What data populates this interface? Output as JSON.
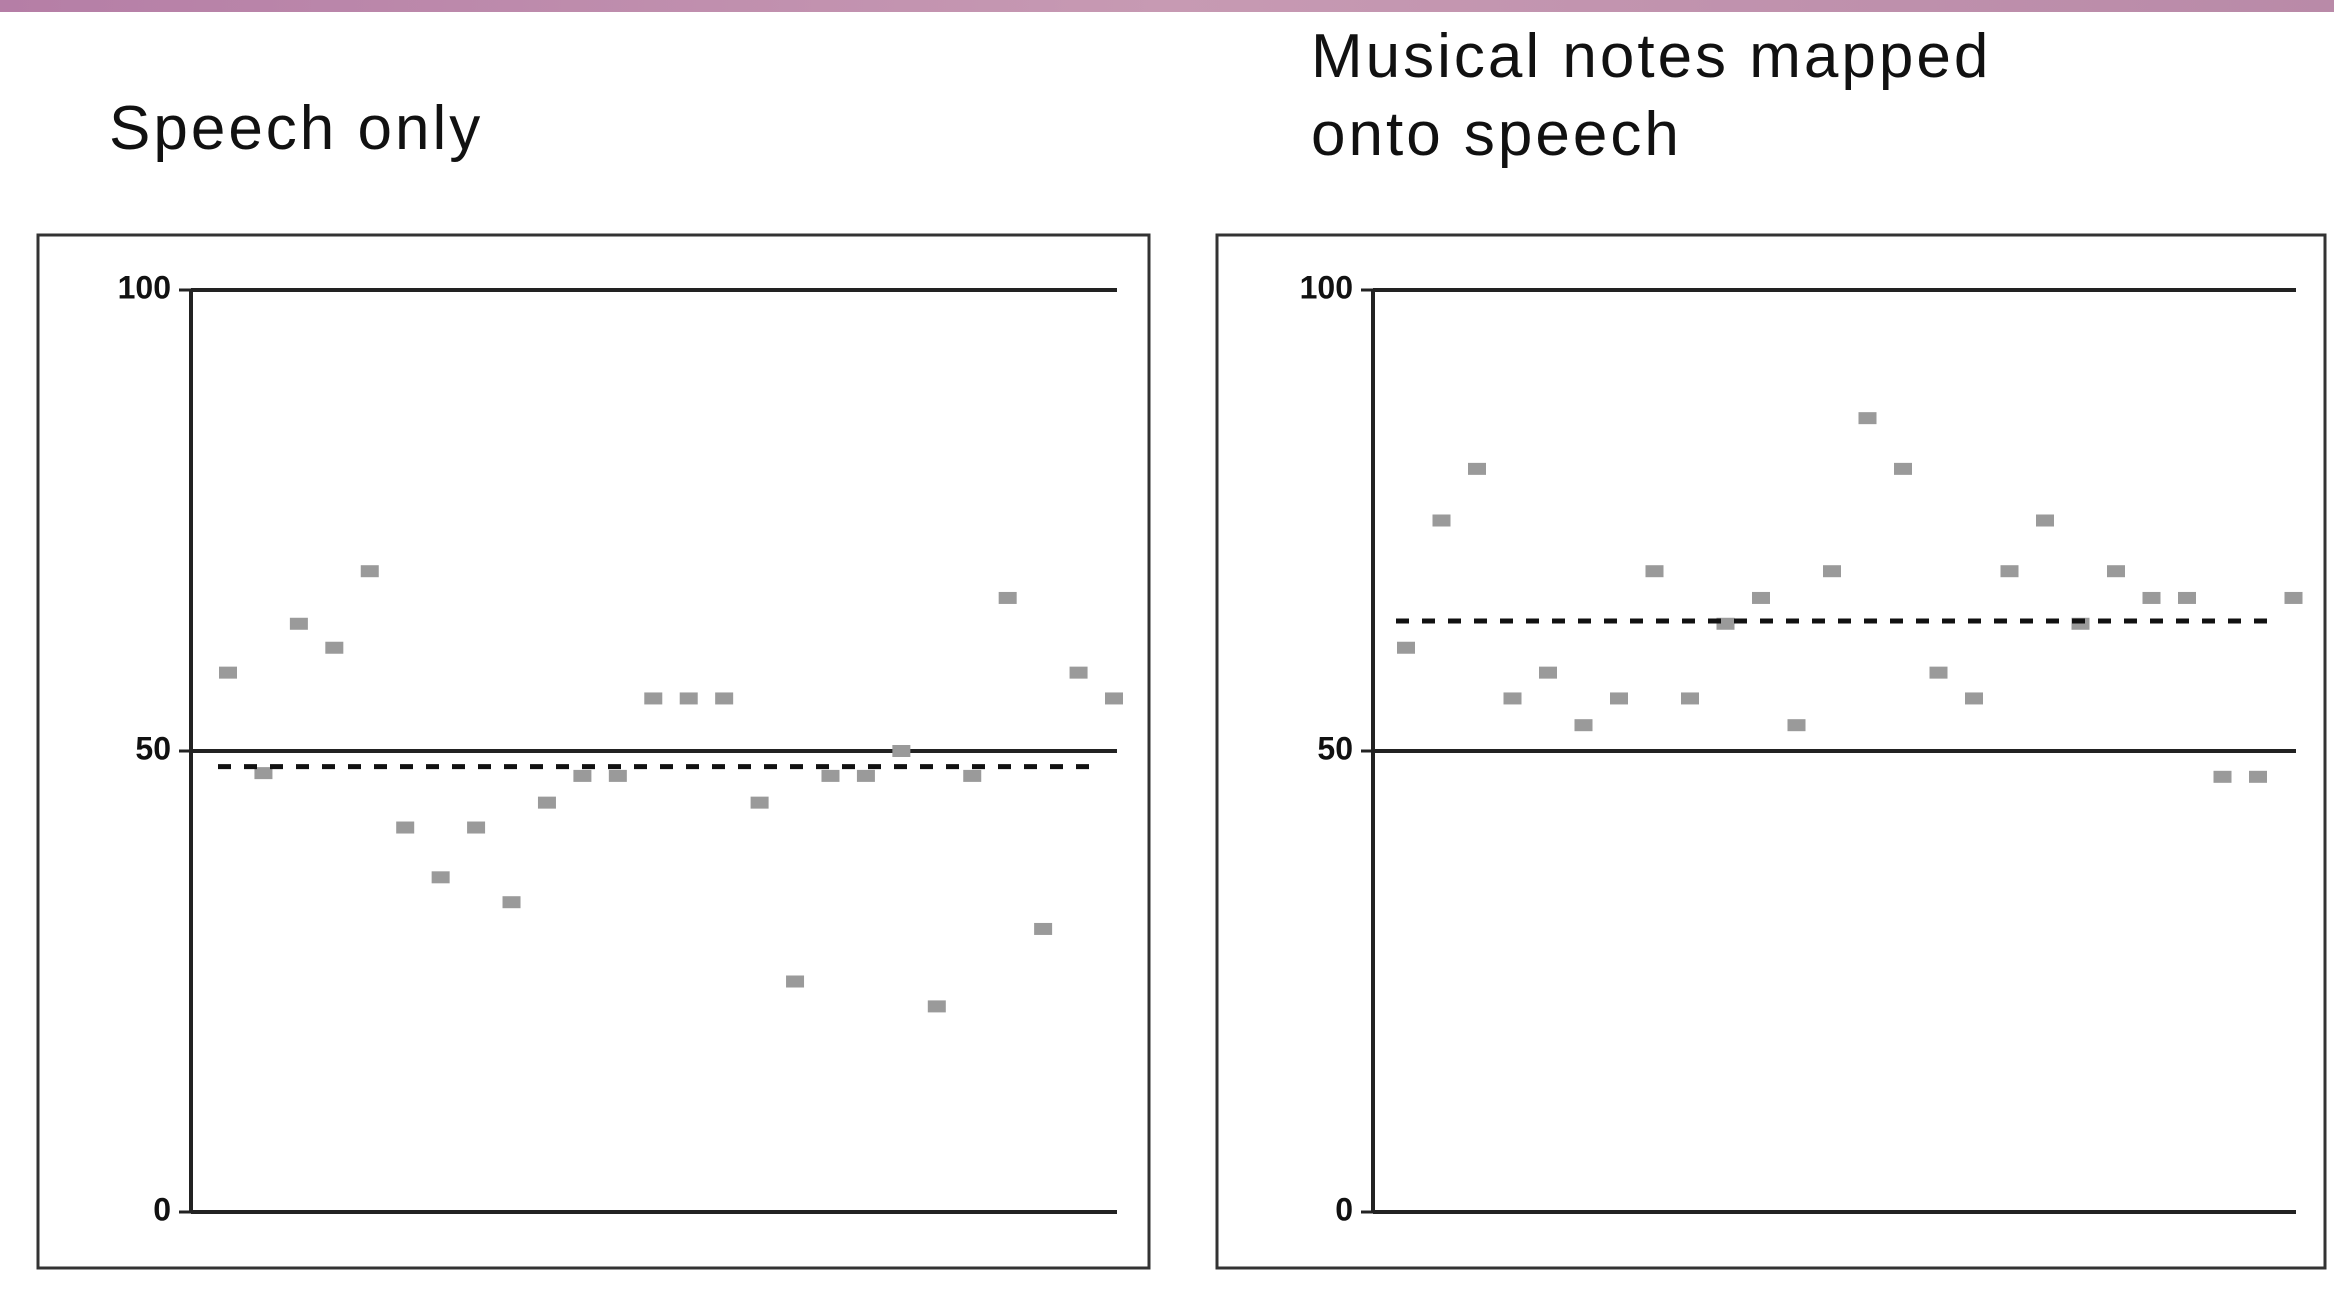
{
  "chart_data": [
    {
      "type": "scatter",
      "title": "Speech only",
      "values": [
        58.5,
        47.6,
        63.8,
        61.2,
        69.5,
        41.7,
        36.3,
        41.7,
        33.6,
        44.4,
        47.3,
        47.3,
        55.7,
        55.7,
        55.7,
        44.4,
        25,
        47.3,
        47.3,
        50,
        22.3,
        47.3,
        66.6,
        30.7,
        58.5,
        55.7
      ],
      "color": "#9a9a9a",
      "mean_line": 48.3,
      "ylim": [
        0,
        100
      ],
      "yticks": [
        0,
        50,
        100
      ],
      "grid": true
    },
    {
      "type": "scatter",
      "title": [
        "Musical notes mapped",
        "onto speech"
      ],
      "values": [
        61.2,
        75,
        80.6,
        55.7,
        58.5,
        52.8,
        55.7,
        69.5,
        55.7,
        63.8,
        66.6,
        52.8,
        69.5,
        86.1,
        80.6,
        58.5,
        55.7,
        69.5,
        75,
        63.8,
        69.5,
        66.6,
        66.6,
        47.2,
        47.2,
        66.6
      ],
      "color": "#9a9a9a",
      "mean_line": 64.1,
      "ylim": [
        0,
        100
      ],
      "yticks": [
        0,
        50,
        100
      ],
      "grid": true
    }
  ]
}
